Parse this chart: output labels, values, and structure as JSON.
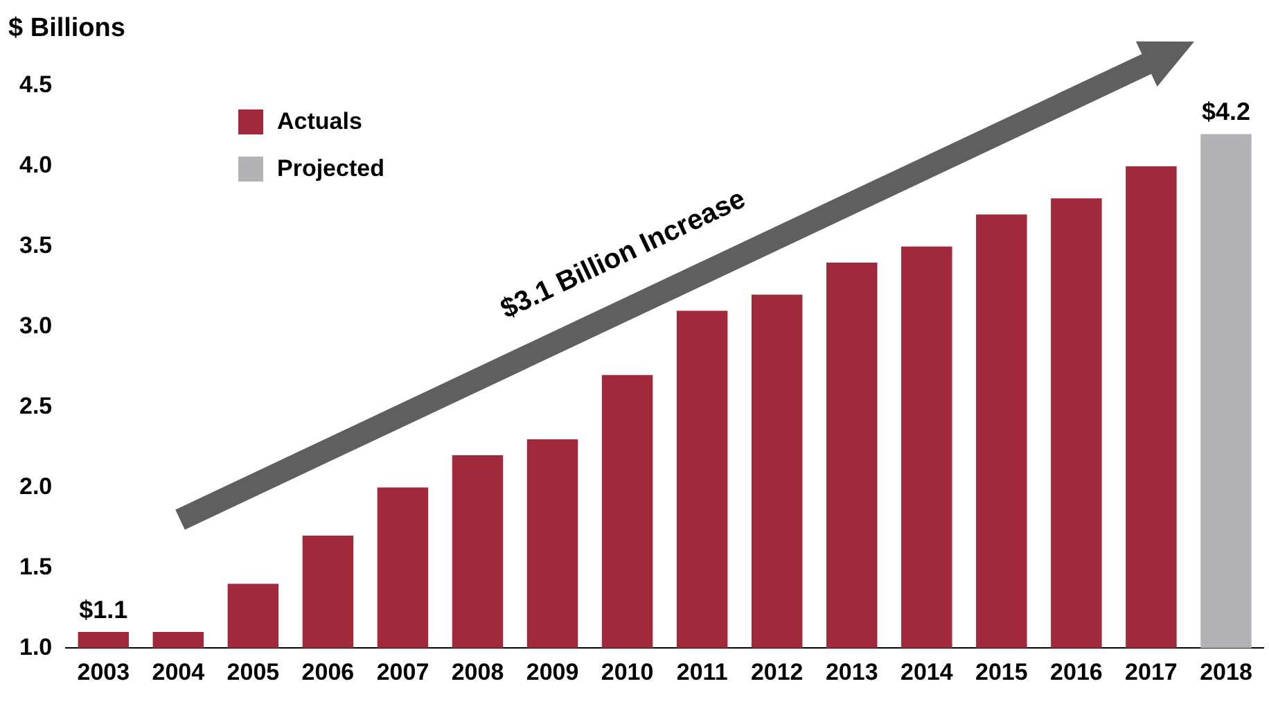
{
  "chart_data": {
    "type": "bar",
    "ylabel": "$ Billions",
    "categories": [
      "2003",
      "2004",
      "2005",
      "2006",
      "2007",
      "2008",
      "2009",
      "2010",
      "2011",
      "2012",
      "2013",
      "2014",
      "2015",
      "2016",
      "2017",
      "2018"
    ],
    "series": [
      {
        "name": "Actuals",
        "color": "#a0293c",
        "values": [
          1.1,
          1.1,
          1.4,
          1.7,
          2.0,
          2.2,
          2.3,
          2.7,
          3.1,
          3.2,
          3.4,
          3.5,
          3.7,
          3.8,
          4.0,
          null
        ],
        "value_labels": [
          "$1.1",
          null,
          null,
          null,
          null,
          null,
          null,
          null,
          null,
          null,
          null,
          null,
          null,
          null,
          null,
          null
        ]
      },
      {
        "name": "Projected",
        "color": "#b3b3b6",
        "values": [
          null,
          null,
          null,
          null,
          null,
          null,
          null,
          null,
          null,
          null,
          null,
          null,
          null,
          null,
          null,
          4.2
        ],
        "value_labels": [
          null,
          null,
          null,
          null,
          null,
          null,
          null,
          null,
          null,
          null,
          null,
          null,
          null,
          null,
          null,
          "$4.2"
        ]
      }
    ],
    "ylim": [
      1,
      4.5
    ],
    "yticks": [
      {
        "value": 1,
        "label": "1.0"
      },
      {
        "value": 1.5,
        "label": "1.5"
      },
      {
        "value": 2,
        "label": "2.0"
      },
      {
        "value": 2.5,
        "label": "2.5"
      },
      {
        "value": 3,
        "label": "3.0"
      },
      {
        "value": 3.5,
        "label": "3.5"
      },
      {
        "value": 4,
        "label": "4.0"
      },
      {
        "value": 4.5,
        "label": "4.5"
      }
    ],
    "grid": false,
    "legend": "top left",
    "annotations": [
      "$3.1 Billion Increase"
    ]
  }
}
